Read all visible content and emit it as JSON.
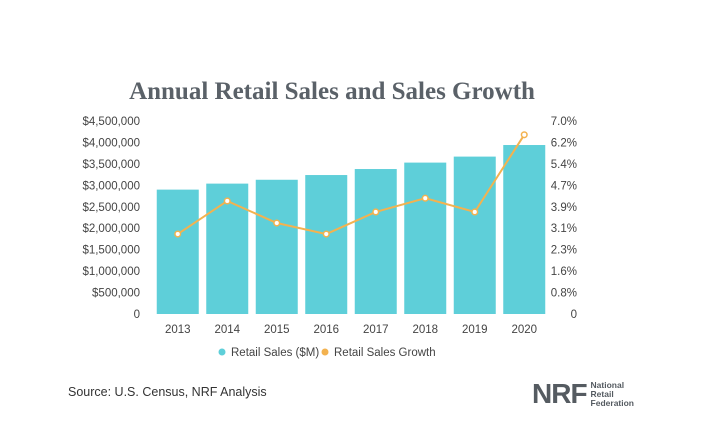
{
  "chart_data": {
    "type": "bar",
    "title": "Annual Retail Sales and Sales Growth",
    "categories": [
      "2013",
      "2014",
      "2015",
      "2016",
      "2017",
      "2018",
      "2019",
      "2020"
    ],
    "series": [
      {
        "name": "Retail Sales ($M)",
        "type": "bar",
        "axis": "left",
        "color": "#5ecfd9",
        "values": [
          2900000,
          3040000,
          3130000,
          3240000,
          3380000,
          3530000,
          3670000,
          3940000
        ]
      },
      {
        "name": "Retail Sales Growth",
        "type": "line",
        "axis": "right",
        "color": "#f3b24f",
        "values": [
          2.9,
          4.1,
          3.3,
          2.9,
          3.7,
          4.2,
          3.7,
          6.5
        ]
      }
    ],
    "y_left": {
      "ticks": [
        "$4,500,000",
        "$4,000,000",
        "$3,500,000",
        "$3,000,000",
        "$2,500,000",
        "$2,000,000",
        "$1,500,000",
        "$1,000,000",
        "$500,000",
        "0"
      ],
      "ylim": [
        0,
        4500000
      ]
    },
    "y_right": {
      "ticks": [
        "7.0%",
        "6.2%",
        "5.4%",
        "4.7%",
        "3.9%",
        "3.1%",
        "2.3%",
        "1.6%",
        "0.8%",
        "0"
      ],
      "ylim": [
        0,
        7.0
      ]
    },
    "legend": {
      "position": "bottom"
    },
    "grid": false
  },
  "footer": {
    "source": "Source: U.S. Census, NRF Analysis",
    "logo_mark": "NRF",
    "logo_lines": [
      "National",
      "Retail",
      "Federation"
    ]
  }
}
